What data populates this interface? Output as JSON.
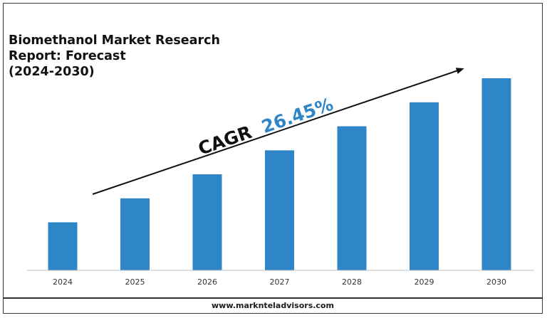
{
  "chart_data": {
    "type": "bar",
    "title_lines": [
      "Biomethanol Market Research",
      "Report: Forecast",
      "(2024-2030)"
    ],
    "categories": [
      "2024",
      "2025",
      "2026",
      "2027",
      "2028",
      "2029",
      "2030"
    ],
    "values": [
      1.0,
      1.5,
      2.0,
      2.5,
      3.0,
      3.5,
      4.0
    ],
    "annotation": {
      "prefix": "CAGR",
      "value": "26.45%"
    },
    "colors": {
      "bar": "#2e86c9",
      "cagr_value": "#2e86c9",
      "cagr_prefix": "#111111",
      "arrow": "#111111"
    },
    "grid": false,
    "legend": "none"
  },
  "footer": {
    "website": "www.marknteladvisors.com"
  }
}
